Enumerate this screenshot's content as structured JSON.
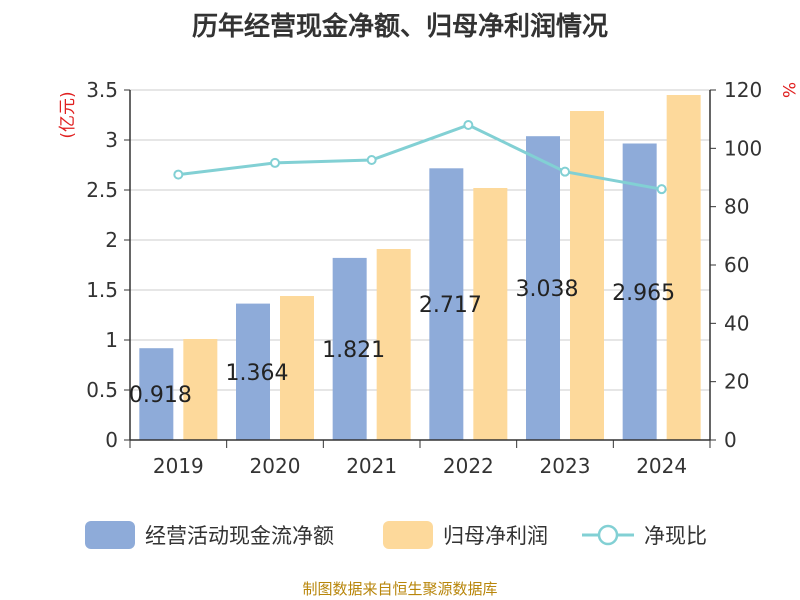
{
  "title": "历年经营现金净额、归母净利润情况",
  "source": "制图数据来自恒生聚源数据库",
  "chart_data": {
    "type": "bar",
    "categories": [
      "2019",
      "2020",
      "2021",
      "2022",
      "2023",
      "2024"
    ],
    "series": [
      {
        "name": "经营活动现金流净额",
        "type": "bar",
        "axis": "left",
        "values": [
          0.918,
          1.364,
          1.821,
          2.717,
          3.038,
          2.965
        ],
        "color": "#8eabd9"
      },
      {
        "name": "归母净利润",
        "type": "bar",
        "axis": "left",
        "values": [
          1.01,
          1.44,
          1.91,
          2.52,
          3.29,
          3.45
        ],
        "color": "#fdd99b"
      },
      {
        "name": "净现比",
        "type": "line",
        "axis": "right",
        "values": [
          91,
          95,
          96,
          108,
          92,
          86
        ],
        "color": "#82d0d4"
      }
    ],
    "data_labels": [
      "0.918",
      "1.364",
      "1.821",
      "2.717",
      "3.038",
      "2.965"
    ],
    "left_axis": {
      "label": "(亿元)",
      "ylim": [
        0,
        3.5
      ],
      "ticks": [
        "0",
        "0.5",
        "1",
        "1.5",
        "2",
        "2.5",
        "3",
        "3.5"
      ]
    },
    "right_axis": {
      "label": "%",
      "ylim": [
        0,
        120
      ],
      "ticks": [
        "0",
        "20",
        "40",
        "60",
        "80",
        "100",
        "120"
      ]
    },
    "grid": true,
    "legend_position": "bottom"
  }
}
